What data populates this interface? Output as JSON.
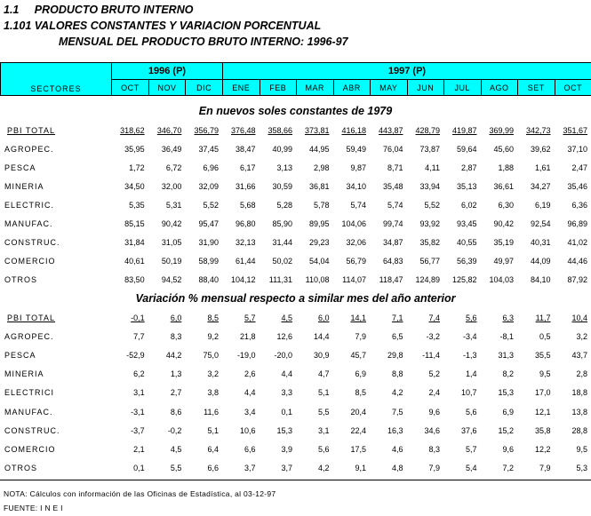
{
  "header": {
    "lines": [
      "1.1     PRODUCTO BRUTO INTERNO",
      "1.101 VALORES CONSTANTES Y VARIACION PORCENTUAL",
      "MENSUAL DEL PRODUCTO BRUTO INTERNO: 1996-97"
    ]
  },
  "table": {
    "first_header": "SECTORES",
    "groups": [
      {
        "label": "1996 (P)",
        "months": [
          "OCT",
          "NOV",
          "DIC"
        ]
      },
      {
        "label": "1997 (P)",
        "months": [
          "ENE",
          "FEB",
          "MAR",
          "ABR",
          "MAY",
          "JUN",
          "JUL",
          "AGO",
          "SET",
          "OCT"
        ]
      }
    ],
    "sections": [
      {
        "caption": "En nuevos soles constantes de 1979",
        "rows": [
          {
            "sector": "PBI TOTAL",
            "values": [
              "318,62",
              "346,70",
              "356,79",
              "376,48",
              "358,66",
              "373,81",
              "416,18",
              "443,87",
              "428,79",
              "419,87",
              "369,99",
              "342,73",
              "351,67"
            ]
          },
          {
            "sector": "AGROPEC.",
            "values": [
              "35,95",
              "36,49",
              "37,45",
              "38,47",
              "40,99",
              "44,95",
              "59,49",
              "76,04",
              "73,87",
              "59,64",
              "45,60",
              "39,62",
              "37,10"
            ]
          },
          {
            "sector": "PESCA",
            "values": [
              "1,72",
              "6,72",
              "6,96",
              "6,17",
              "3,13",
              "2,98",
              "9,87",
              "8,71",
              "4,11",
              "2,87",
              "1,88",
              "1,61",
              "2,47"
            ]
          },
          {
            "sector": "MINERIA",
            "values": [
              "34,50",
              "32,00",
              "32,09",
              "31,66",
              "30,59",
              "36,81",
              "34,10",
              "35,48",
              "33,94",
              "35,13",
              "36,61",
              "34,27",
              "35,46"
            ]
          },
          {
            "sector": "ELECTRIC.",
            "values": [
              "5,35",
              "5,31",
              "5,52",
              "5,68",
              "5,28",
              "5,78",
              "5,74",
              "5,74",
              "5,52",
              "6,02",
              "6,30",
              "6,19",
              "6,36"
            ]
          },
          {
            "sector": "MANUFAC.",
            "values": [
              "85,15",
              "90,42",
              "95,47",
              "96,80",
              "85,90",
              "89,95",
              "104,06",
              "99,74",
              "93,92",
              "93,45",
              "90,42",
              "92,54",
              "96,89"
            ]
          },
          {
            "sector": "CONSTRUC.",
            "values": [
              "31,84",
              "31,05",
              "31,90",
              "32,13",
              "31,44",
              "29,23",
              "32,06",
              "34,87",
              "35,82",
              "40,55",
              "35,19",
              "40,31",
              "41,02"
            ]
          },
          {
            "sector": "COMERCIO",
            "values": [
              "40,61",
              "50,19",
              "58,99",
              "61,44",
              "50,02",
              "54,04",
              "56,79",
              "64,83",
              "56,77",
              "56,39",
              "49,97",
              "44,09",
              "44,46"
            ]
          },
          {
            "sector": "OTROS",
            "values": [
              "83,50",
              "94,52",
              "88,40",
              "104,12",
              "111,31",
              "110,08",
              "114,07",
              "118,47",
              "124,89",
              "125,82",
              "104,03",
              "84,10",
              "87,92"
            ]
          }
        ]
      },
      {
        "caption": "Variación % mensual respecto a similar mes del año anterior",
        "rows": [
          {
            "sector": "PBI TOTAL",
            "values": [
              "-0,1",
              "6,0",
              "8,5",
              "5,7",
              "4,5",
              "6,0",
              "14,1",
              "7,1",
              "7,4",
              "5,6",
              "6,3",
              "11,7",
              "10,4"
            ]
          },
          {
            "sector": "AGROPEC.",
            "values": [
              "7,7",
              "8,3",
              "9,2",
              "21,8",
              "12,6",
              "14,4",
              "7,9",
              "6,5",
              "-3,2",
              "-3,4",
              "-8,1",
              "0,5",
              "3,2"
            ]
          },
          {
            "sector": "PESCA",
            "values": [
              "-52,9",
              "44,2",
              "75,0",
              "-19,0",
              "-20,0",
              "30,9",
              "45,7",
              "29,8",
              "-11,4",
              "-1,3",
              "31,3",
              "35,5",
              "43,7"
            ]
          },
          {
            "sector": "MINERIA",
            "values": [
              "6,2",
              "1,3",
              "3,2",
              "2,6",
              "4,4",
              "4,7",
              "6,9",
              "8,8",
              "5,2",
              "1,4",
              "8,2",
              "9,5",
              "2,8"
            ]
          },
          {
            "sector": "ELECTRICI",
            "values": [
              "3,1",
              "2,7",
              "3,8",
              "4,4",
              "3,3",
              "5,1",
              "8,5",
              "4,2",
              "2,4",
              "10,7",
              "15,3",
              "17,0",
              "18,8"
            ]
          },
          {
            "sector": "MANUFAC.",
            "values": [
              "-3,1",
              "8,6",
              "11,6",
              "3,4",
              "0,1",
              "5,5",
              "20,4",
              "7,5",
              "9,6",
              "5,6",
              "6,9",
              "12,1",
              "13,8"
            ]
          },
          {
            "sector": "CONSTRUC.",
            "values": [
              "-3,7",
              "-0,2",
              "5,1",
              "10,6",
              "15,3",
              "3,1",
              "22,4",
              "16,3",
              "34,6",
              "37,6",
              "15,2",
              "35,8",
              "28,8"
            ]
          },
          {
            "sector": "COMERCIO",
            "values": [
              "2,1",
              "4,5",
              "6,4",
              "6,6",
              "3,9",
              "5,6",
              "17,5",
              "4,6",
              "8,3",
              "5,7",
              "9,6",
              "12,2",
              "9,5"
            ]
          },
          {
            "sector": "OTROS",
            "values": [
              "0,1",
              "5,5",
              "6,6",
              "3,7",
              "3,7",
              "4,2",
              "9,1",
              "4,8",
              "7,9",
              "5,4",
              "7,2",
              "7,9",
              "5,3"
            ]
          }
        ]
      }
    ]
  },
  "footer": {
    "note": "NOTA: Cálculos con información de las Oficinas de Estadística, al 03-12-97",
    "source": "FUENTE: I N E I"
  }
}
